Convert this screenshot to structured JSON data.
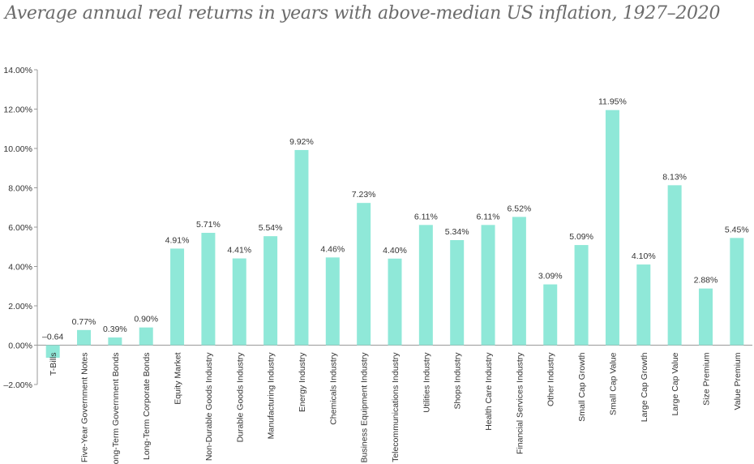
{
  "chart_data": {
    "type": "bar",
    "title": "Average annual real returns in years with above-median US inflation, 1927–2020",
    "categories": [
      "T-Bills",
      "Five-Year Government Notes",
      "Long-Term Government Bonds",
      "Long-Term Corporate Bonds",
      "Equity Market",
      "Non-Durable Goods Industry",
      "Durable Goods Industry",
      "Manufacturing Industry",
      "Energy Industry",
      "Chemicals Industry",
      "Business Equipment Industry",
      "Telecommunications Industry",
      "Utilities Industry",
      "Shops Industry",
      "Health Care Industry",
      "Financial Services Industry",
      "Other Industry",
      "Small Cap Growth",
      "Small Cap Value",
      "Large Cap Growth",
      "Large Cap Value",
      "Size Premium",
      "Value Premium"
    ],
    "values": [
      -0.64,
      0.77,
      0.39,
      0.9,
      4.91,
      5.71,
      4.41,
      5.54,
      9.92,
      4.46,
      7.23,
      4.4,
      6.11,
      5.34,
      6.11,
      6.52,
      3.09,
      5.09,
      11.95,
      4.1,
      8.13,
      2.88,
      5.45
    ],
    "value_labels": [
      "–0.64",
      "0.77%",
      "0.39%",
      "0.90%",
      "4.91%",
      "5.71%",
      "4.41%",
      "5.54%",
      "9.92%",
      "4.46%",
      "7.23%",
      "4.40%",
      "6.11%",
      "5.34%",
      "6.11%",
      "6.52%",
      "3.09%",
      "5.09%",
      "11.95%",
      "4.10%",
      "8.13%",
      "2.88%",
      "5.45%"
    ],
    "y_ticks": [
      14,
      12,
      10,
      8,
      6,
      4,
      2,
      0,
      -2
    ],
    "y_tick_labels": [
      "14.00%",
      "12.00%",
      "10.00%",
      "8.00%",
      "6.00%",
      "4.00%",
      "2.00%",
      "0.00%",
      "–2.00%"
    ],
    "ylim": [
      -2,
      14
    ],
    "xlabel": "",
    "ylabel": "",
    "grid": false,
    "bar_color": "#8fe8d8",
    "axis_color": "#9a9a9a"
  }
}
